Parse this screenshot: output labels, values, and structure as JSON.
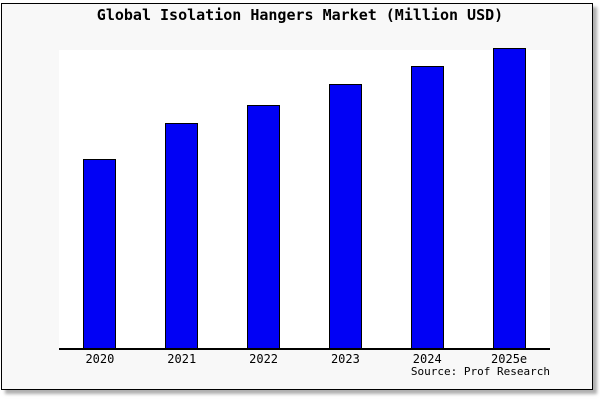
{
  "title": "Global Isolation Hangers Market (Million USD)",
  "source": "Source: Prof Research",
  "colors": {
    "bar_fill": "#0101f5",
    "bar_border": "#000000",
    "frame_background": "#f8f8f8",
    "plot_background": "#ffffff",
    "axis": "#000000",
    "text": "#000000"
  },
  "chart_data": {
    "type": "bar",
    "title": "Global Isolation Hangers Market (Million USD)",
    "categories": [
      "2020",
      "2021",
      "2022",
      "2023",
      "2024",
      "2025e"
    ],
    "values": [
      63,
      75,
      81,
      88,
      94,
      100
    ],
    "values_note": "no y-axis shown; values estimated from bar heights, normalized so tallest bar (2025e) = 100",
    "xlabel": "",
    "ylabel": "",
    "ylim": [
      0,
      100
    ],
    "grid": false,
    "legend": false,
    "bar_color": "#0101f5",
    "source_annotation": "Source: Prof Research"
  }
}
